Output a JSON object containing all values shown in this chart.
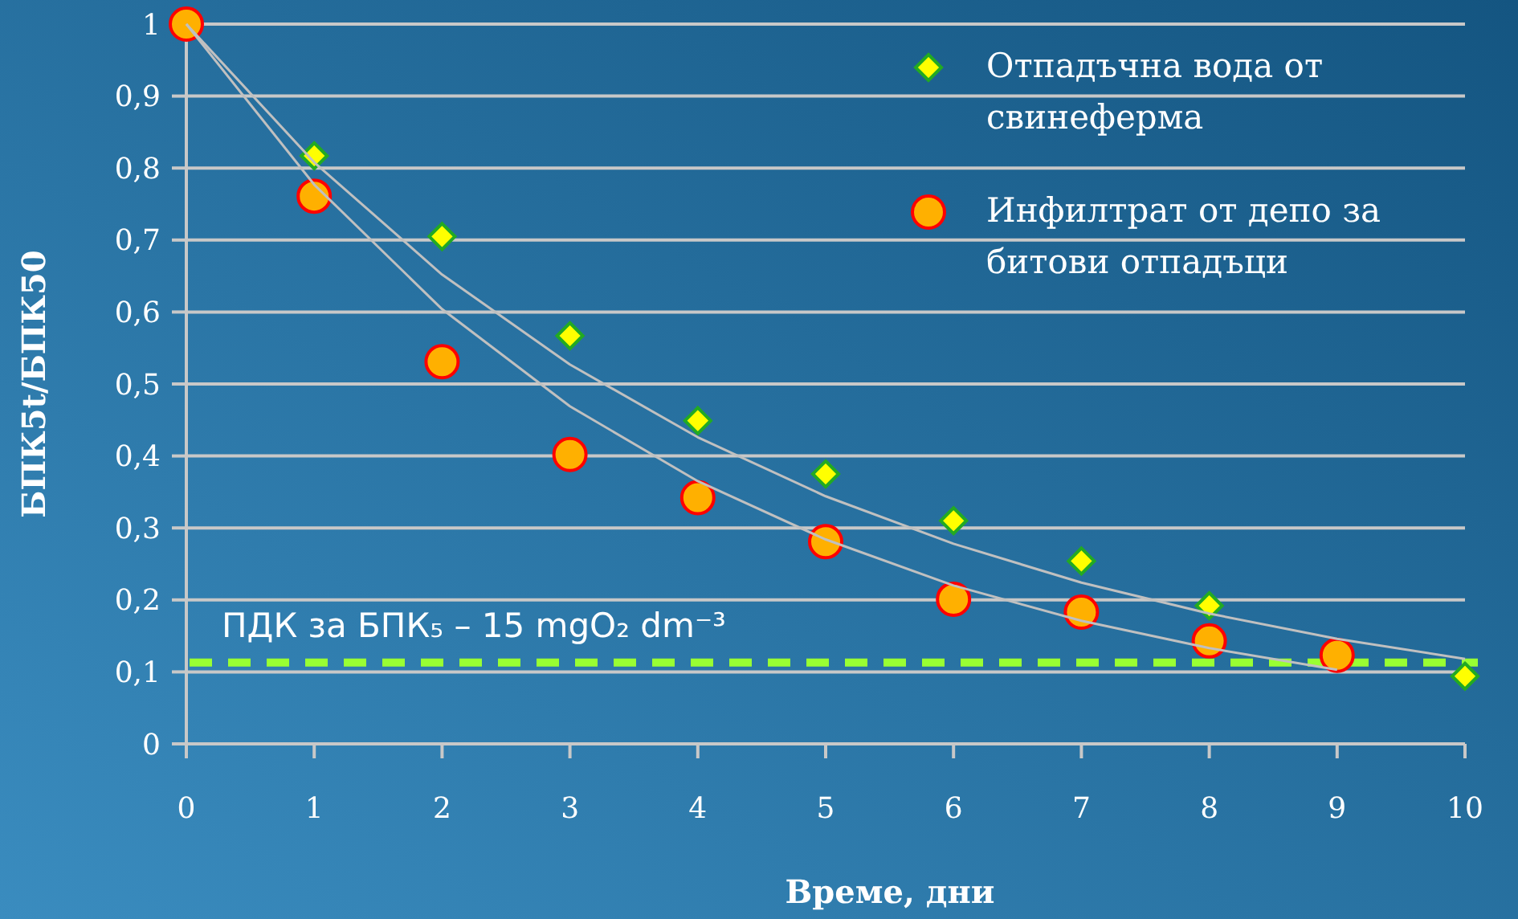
{
  "chart_data": {
    "type": "scatter",
    "xlabel": "Време, дни",
    "ylabel": "БПК5t/БПК50",
    "xlim": [
      0,
      10
    ],
    "xticks": [
      0,
      1,
      2,
      3,
      4,
      5,
      6,
      7,
      8,
      9,
      10
    ],
    "ylim": [
      0,
      1
    ],
    "yticks": [
      {
        "value": 0,
        "label": "0"
      },
      {
        "value": 0.1,
        "label": "0,1"
      },
      {
        "value": 0.2,
        "label": "0,2"
      },
      {
        "value": 0.3,
        "label": "0,3"
      },
      {
        "value": 0.4,
        "label": "0,4"
      },
      {
        "value": 0.5,
        "label": "0,5"
      },
      {
        "value": 0.6,
        "label": "0,6"
      },
      {
        "value": 0.7,
        "label": "0,7"
      },
      {
        "value": 0.8,
        "label": "0,8"
      },
      {
        "value": 0.9,
        "label": "0,9"
      },
      {
        "value": 1,
        "label": "1"
      }
    ],
    "grid": "y",
    "legend": "top right",
    "ref_lines": [
      {
        "axis": "y",
        "value": 0.113,
        "label": "ПДК за БПК₅ – 15 mgO₂ dm⁻³",
        "color": "#99ff33",
        "line_style": "dashed"
      }
    ],
    "series": [
      {
        "type": "line",
        "color": "#c0c0c0",
        "marker": "none",
        "x": [
          0,
          1,
          2,
          3,
          4,
          5,
          6,
          7,
          8,
          9,
          10
        ],
        "values": [
          1,
          0.808,
          0.652,
          0.527,
          0.426,
          0.344,
          0.278,
          0.224,
          0.181,
          0.146,
          0.118
        ]
      },
      {
        "type": "line",
        "color": "#c0c0c0",
        "marker": "none",
        "x": [
          0,
          1,
          2,
          3,
          4,
          5,
          6,
          7,
          8,
          9
        ],
        "values": [
          1,
          0.777,
          0.604,
          0.469,
          0.365,
          0.284,
          0.22,
          0.171,
          0.133,
          0.103
        ]
      },
      {
        "name": "Отпадъчна вода от свинеферма",
        "color": "#ffff00",
        "marker": "diamond",
        "x": [
          1,
          2,
          3,
          4,
          5,
          6,
          7,
          8,
          9,
          10
        ],
        "values": [
          0.817,
          0.705,
          0.567,
          0.449,
          0.375,
          0.31,
          0.254,
          0.192,
          null,
          0.094
        ]
      },
      {
        "name": "Инфилтрат от депо за битови отпадъци",
        "color": "#ffb000",
        "marker": "circle",
        "x": [
          0,
          1,
          2,
          3,
          4,
          5,
          6,
          7,
          8,
          9
        ],
        "values": [
          1,
          0.761,
          0.531,
          0.402,
          0.342,
          0.281,
          0.201,
          0.183,
          0.143,
          0.123
        ]
      }
    ]
  }
}
